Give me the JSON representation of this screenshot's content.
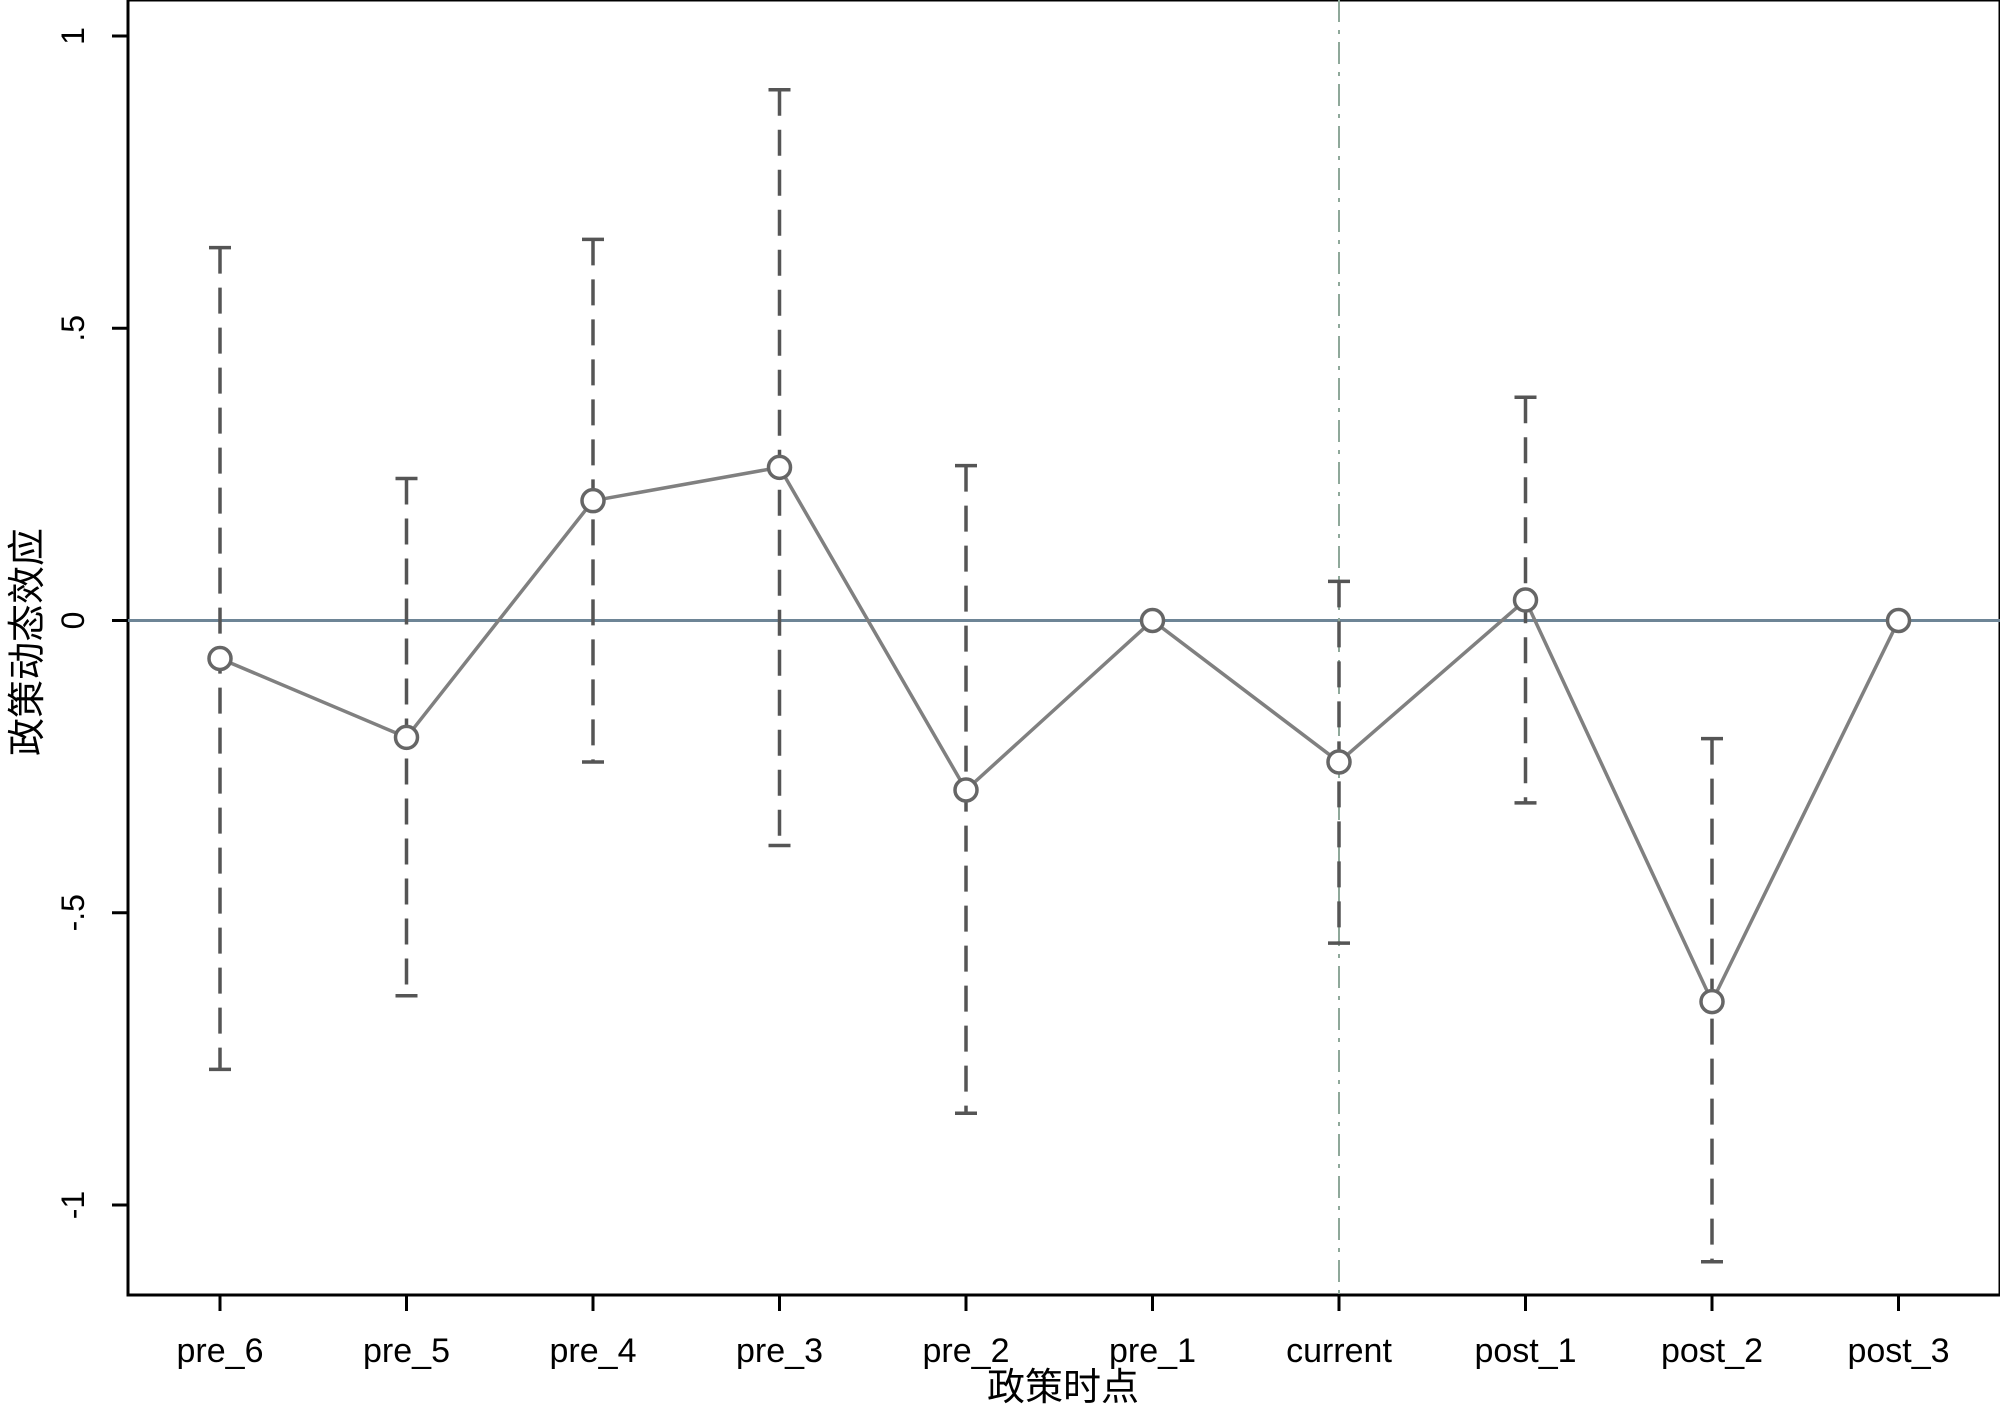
{
  "chart_data": {
    "type": "line",
    "xlabel": "政策时点",
    "ylabel": "政策动态效应",
    "categories": [
      "pre_6",
      "pre_5",
      "pre_4",
      "pre_3",
      "pre_2",
      "pre_1",
      "current",
      "post_1",
      "post_2",
      "post_3"
    ],
    "series": [
      {
        "values": [
          -0.065,
          -0.2,
          0.205,
          0.262,
          -0.29,
          0.0,
          -0.242,
          0.035,
          -0.652,
          0.0
        ],
        "ci_lower": [
          -0.768,
          -0.642,
          -0.242,
          -0.385,
          -0.843,
          null,
          -0.552,
          -0.312,
          -1.097,
          null
        ],
        "ci_upper": [
          0.638,
          0.243,
          0.652,
          0.908,
          0.265,
          null,
          0.067,
          0.382,
          -0.202,
          null
        ]
      }
    ],
    "yticks": [
      "1",
      ".5",
      "0",
      "-.5",
      "-1"
    ],
    "ytick_values": [
      1,
      0.5,
      0,
      -0.5,
      -1
    ],
    "ylim": [
      -1.155,
      1.055
    ],
    "reference_lines": {
      "horizontal_y": 0,
      "vertical_at_category": "current"
    },
    "grid": false,
    "legend": "none",
    "colors": {
      "series": "#808080",
      "ci": "#555555",
      "zero_line": "#6e8596",
      "vline": "#8fa89a",
      "axis": "#000000"
    }
  }
}
